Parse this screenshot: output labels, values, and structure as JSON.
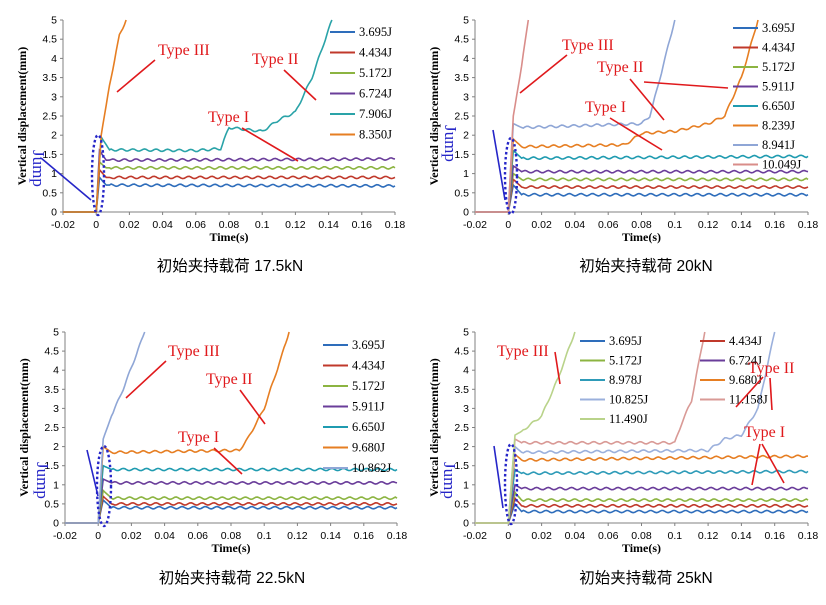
{
  "colors": {
    "annotation": "#e0191c",
    "jump": "#2626c8",
    "axis": "#808080",
    "s3695": "#2e6dbb",
    "s4434": "#c0392b",
    "s5172": "#8cb441",
    "s5911": "#6a3d9a",
    "s6724": "#6a3d9a",
    "s6650": "#1f9bb0",
    "s7906": "#2aa3a8",
    "s8350": "#e67e22",
    "s8239": "#e67e22",
    "s8941": "#8fa6d6",
    "s8978": "#2e9bb8",
    "s9680": "#e67e22",
    "s10049": "#d98d8a",
    "s10862": "#8fa6d6",
    "s10825": "#9bb0dc",
    "s11158": "#d99a96",
    "s11490": "#b9d38a",
    "baseline": "#e67e22"
  },
  "chart_data": [
    {
      "type": "line",
      "caption": "初始夹持载荷 17.5kN",
      "xlabel": "Time(s)",
      "ylabel": "Vertical displacement(mm)",
      "xlim": [
        -0.02,
        0.18
      ],
      "ylim": [
        0,
        5
      ],
      "xticks": [
        "-0.02",
        "0",
        "0.02",
        "0.04",
        "0.06",
        "0.08",
        "0.1",
        "0.12",
        "0.14",
        "0.16",
        "0.18"
      ],
      "yticks": [
        "0",
        "0.5",
        "1",
        "1.5",
        "2",
        "2.5",
        "3",
        "3.5",
        "4",
        "4.5",
        "5"
      ],
      "series": [
        {
          "name": "3.695J",
          "color": "#2e6dbb",
          "points": [
            [
              -0.02,
              0
            ],
            [
              0,
              0
            ],
            [
              0.002,
              0.9
            ],
            [
              0.006,
              0.7
            ],
            [
              0.18,
              0.68
            ]
          ]
        },
        {
          "name": "4.434J",
          "color": "#c0392b",
          "points": [
            [
              -0.02,
              0
            ],
            [
              0,
              0
            ],
            [
              0.002,
              1.1
            ],
            [
              0.006,
              0.9
            ],
            [
              0.18,
              0.9
            ]
          ]
        },
        {
          "name": "5.172J",
          "color": "#8cb441",
          "points": [
            [
              -0.02,
              0
            ],
            [
              0,
              0
            ],
            [
              0.002,
              1.3
            ],
            [
              0.006,
              1.15
            ],
            [
              0.18,
              1.15
            ]
          ]
        },
        {
          "name": "6.724J",
          "color": "#6a3d9a",
          "points": [
            [
              -0.02,
              0
            ],
            [
              0,
              0
            ],
            [
              0.002,
              1.6
            ],
            [
              0.006,
              1.35
            ],
            [
              0.18,
              1.38
            ]
          ]
        },
        {
          "name": "7.906J",
          "color": "#2aa3a8",
          "points": [
            [
              -0.02,
              0
            ],
            [
              0,
              0
            ],
            [
              0.003,
              1.95
            ],
            [
              0.008,
              1.62
            ],
            [
              0.06,
              1.6
            ],
            [
              0.075,
              1.65
            ],
            [
              0.08,
              2.2
            ],
            [
              0.09,
              2.15
            ],
            [
              0.1,
              2.1
            ],
            [
              0.11,
              2.4
            ],
            [
              0.12,
              2.6
            ],
            [
              0.13,
              3.5
            ],
            [
              0.142,
              5
            ]
          ]
        },
        {
          "name": "8.350J",
          "color": "#e67e22",
          "points": [
            [
              -0.02,
              0
            ],
            [
              0,
              0
            ],
            [
              0.003,
              2.0
            ],
            [
              0.008,
              3.3
            ],
            [
              0.014,
              4.6
            ],
            [
              0.018,
              5
            ]
          ]
        }
      ],
      "annotations": [
        "Type III",
        "Type II",
        "Type I"
      ],
      "jump_label": "Jump"
    },
    {
      "type": "line",
      "caption": "初始夹持载荷  20kN",
      "xlabel": "Time(s)",
      "ylabel": "Vertical displacement(mm)",
      "xlim": [
        -0.02,
        0.18
      ],
      "ylim": [
        0,
        5
      ],
      "xticks": [
        "-0.02",
        "0",
        "0.02",
        "0.04",
        "0.06",
        "0.08",
        "0.1",
        "0.12",
        "0.14",
        "0.16",
        "0.18"
      ],
      "yticks": [
        "0",
        "0.5",
        "1",
        "1.5",
        "2",
        "2.5",
        "3",
        "3.5",
        "4",
        "4.5",
        "5"
      ],
      "series": [
        {
          "name": "3.695J",
          "color": "#2e6dbb",
          "points": [
            [
              -0.02,
              0
            ],
            [
              0,
              0
            ],
            [
              0.003,
              0.7
            ],
            [
              0.008,
              0.45
            ],
            [
              0.18,
              0.45
            ]
          ]
        },
        {
          "name": "4.434J",
          "color": "#c0392b",
          "points": [
            [
              -0.02,
              0
            ],
            [
              0,
              0
            ],
            [
              0.003,
              0.85
            ],
            [
              0.008,
              0.65
            ],
            [
              0.18,
              0.65
            ]
          ]
        },
        {
          "name": "5.172J",
          "color": "#8cb441",
          "points": [
            [
              -0.02,
              0
            ],
            [
              0,
              0
            ],
            [
              0.003,
              1.0
            ],
            [
              0.008,
              0.85
            ],
            [
              0.18,
              0.85
            ]
          ]
        },
        {
          "name": "5.911J",
          "color": "#6a3d9a",
          "points": [
            [
              -0.02,
              0
            ],
            [
              0,
              0
            ],
            [
              0.003,
              1.2
            ],
            [
              0.008,
              1.05
            ],
            [
              0.18,
              1.05
            ]
          ]
        },
        {
          "name": "6.650J",
          "color": "#1f9bb0",
          "points": [
            [
              -0.02,
              0
            ],
            [
              0,
              0
            ],
            [
              0.003,
              1.6
            ],
            [
              0.008,
              1.4
            ],
            [
              0.18,
              1.45
            ]
          ]
        },
        {
          "name": "8.239J",
          "color": "#e67e22",
          "points": [
            [
              -0.02,
              0
            ],
            [
              0,
              0
            ],
            [
              0.003,
              1.9
            ],
            [
              0.008,
              1.7
            ],
            [
              0.07,
              1.75
            ],
            [
              0.08,
              2.05
            ],
            [
              0.1,
              2.1
            ],
            [
              0.12,
              2.3
            ],
            [
              0.13,
              2.5
            ],
            [
              0.14,
              3.5
            ],
            [
              0.15,
              5
            ]
          ]
        },
        {
          "name": "8.941J",
          "color": "#8fa6d6",
          "points": [
            [
              -0.02,
              0
            ],
            [
              0,
              0
            ],
            [
              0.003,
              2.3
            ],
            [
              0.008,
              2.2
            ],
            [
              0.08,
              2.3
            ],
            [
              0.085,
              2.5
            ],
            [
              0.09,
              3.3
            ],
            [
              0.1,
              5
            ]
          ]
        },
        {
          "name": "10.049J",
          "color": "#d98d8a",
          "points": [
            [
              -0.02,
              0
            ],
            [
              0,
              0
            ],
            [
              0.003,
              2.5
            ],
            [
              0.008,
              3.8
            ],
            [
              0.012,
              5
            ]
          ]
        }
      ],
      "annotations": [
        "Type III",
        "Type II",
        "Type I"
      ],
      "jump_label": "Jump"
    },
    {
      "type": "line",
      "caption": "初始夹持载荷  22.5kN",
      "xlabel": "Time(s)",
      "ylabel": "Vertical displacement(mm)",
      "xlim": [
        -0.02,
        0.18
      ],
      "ylim": [
        0,
        5
      ],
      "xticks": [
        "-0.02",
        "0",
        "0.02",
        "0.04",
        "0.06",
        "0.08",
        "0.1",
        "0.12",
        "0.14",
        "0.16",
        "0.18"
      ],
      "yticks": [
        "0",
        "0.5",
        "1",
        "1.5",
        "2",
        "2.5",
        "3",
        "3.5",
        "4",
        "4.5",
        "5"
      ],
      "series": [
        {
          "name": "3.695J",
          "color": "#2e6dbb",
          "points": [
            [
              -0.02,
              0
            ],
            [
              0,
              0
            ],
            [
              0.003,
              0.6
            ],
            [
              0.008,
              0.4
            ],
            [
              0.18,
              0.4
            ]
          ]
        },
        {
          "name": "4.434J",
          "color": "#c0392b",
          "points": [
            [
              -0.02,
              0
            ],
            [
              0,
              0
            ],
            [
              0.003,
              0.7
            ],
            [
              0.008,
              0.5
            ],
            [
              0.18,
              0.5
            ]
          ]
        },
        {
          "name": "5.172J",
          "color": "#8cb441",
          "points": [
            [
              -0.02,
              0
            ],
            [
              0,
              0
            ],
            [
              0.003,
              0.85
            ],
            [
              0.008,
              0.65
            ],
            [
              0.18,
              0.65
            ]
          ]
        },
        {
          "name": "5.911J",
          "color": "#6a3d9a",
          "points": [
            [
              -0.02,
              0
            ],
            [
              0,
              0
            ],
            [
              0.003,
              1.15
            ],
            [
              0.008,
              1.05
            ],
            [
              0.18,
              1.05
            ]
          ]
        },
        {
          "name": "6.650J",
          "color": "#1f9bb0",
          "points": [
            [
              -0.02,
              0
            ],
            [
              0,
              0
            ],
            [
              0.003,
              1.5
            ],
            [
              0.008,
              1.4
            ],
            [
              0.18,
              1.4
            ]
          ]
        },
        {
          "name": "9.680J",
          "color": "#e67e22",
          "points": [
            [
              -0.02,
              0
            ],
            [
              0,
              0
            ],
            [
              0.003,
              2.0
            ],
            [
              0.008,
              1.85
            ],
            [
              0.085,
              1.9
            ],
            [
              0.09,
              2.2
            ],
            [
              0.1,
              3.0
            ],
            [
              0.11,
              4.3
            ],
            [
              0.115,
              5
            ]
          ]
        },
        {
          "name": "10.862J",
          "color": "#8fa6d6",
          "points": [
            [
              -0.02,
              0
            ],
            [
              0,
              0
            ],
            [
              0.003,
              2.2
            ],
            [
              0.008,
              2.8
            ],
            [
              0.015,
              3.5
            ],
            [
              0.022,
              4.3
            ],
            [
              0.028,
              5
            ]
          ]
        }
      ],
      "annotations": [
        "Type III",
        "Type II",
        "Type I"
      ],
      "jump_label": "Jump"
    },
    {
      "type": "line",
      "caption": "初始夹持载荷  25kN",
      "xlabel": "Time(s)",
      "ylabel": "Vertical displacement(mm)",
      "xlim": [
        -0.02,
        0.18
      ],
      "ylim": [
        0,
        5
      ],
      "xticks": [
        "-0.02",
        "0",
        "0.02",
        "0.04",
        "0.06",
        "0.08",
        "0.1",
        "0.12",
        "0.14",
        "0.16",
        "0.18"
      ],
      "yticks": [
        "0",
        "0.5",
        "1",
        "1.5",
        "2",
        "2.5",
        "3",
        "3.5",
        "4",
        "4.5",
        "5"
      ],
      "series": [
        {
          "name": "3.695J",
          "color": "#2e6dbb",
          "points": [
            [
              -0.02,
              0
            ],
            [
              0,
              0
            ],
            [
              0.004,
              0.5
            ],
            [
              0.008,
              0.3
            ],
            [
              0.18,
              0.3
            ]
          ]
        },
        {
          "name": "4.434J",
          "color": "#c0392b",
          "points": [
            [
              -0.02,
              0
            ],
            [
              0,
              0
            ],
            [
              0.004,
              0.65
            ],
            [
              0.008,
              0.45
            ],
            [
              0.18,
              0.45
            ]
          ]
        },
        {
          "name": "5.172J",
          "color": "#8cb441",
          "points": [
            [
              -0.02,
              0
            ],
            [
              0,
              0
            ],
            [
              0.004,
              0.8
            ],
            [
              0.008,
              0.6
            ],
            [
              0.18,
              0.6
            ]
          ]
        },
        {
          "name": "6.724J",
          "color": "#6a3d9a",
          "points": [
            [
              -0.02,
              0
            ],
            [
              0,
              0
            ],
            [
              0.004,
              1.0
            ],
            [
              0.008,
              0.9
            ],
            [
              0.18,
              0.9
            ]
          ]
        },
        {
          "name": "8.978J",
          "color": "#2e9bb8",
          "points": [
            [
              -0.02,
              0
            ],
            [
              0,
              0
            ],
            [
              0.004,
              1.4
            ],
            [
              0.008,
              1.3
            ],
            [
              0.18,
              1.35
            ]
          ]
        },
        {
          "name": "9.680J",
          "color": "#e67e22",
          "points": [
            [
              -0.02,
              0
            ],
            [
              0,
              0
            ],
            [
              0.004,
              1.8
            ],
            [
              0.008,
              1.65
            ],
            [
              0.18,
              1.75
            ]
          ]
        },
        {
          "name": "10.825J",
          "color": "#9bb0dc",
          "points": [
            [
              -0.02,
              0
            ],
            [
              0,
              0
            ],
            [
              0.004,
              2.0
            ],
            [
              0.008,
              1.85
            ],
            [
              0.12,
              1.9
            ],
            [
              0.13,
              2.2
            ],
            [
              0.14,
              2.3
            ],
            [
              0.15,
              3.0
            ],
            [
              0.16,
              5
            ]
          ]
        },
        {
          "name": "11.158J",
          "color": "#d99a96",
          "points": [
            [
              -0.02,
              0
            ],
            [
              0,
              0
            ],
            [
              0.004,
              2.2
            ],
            [
              0.008,
              2.1
            ],
            [
              0.1,
              2.1
            ],
            [
              0.104,
              2.6
            ],
            [
              0.11,
              3.2
            ],
            [
              0.118,
              5
            ]
          ]
        },
        {
          "name": "11.490J",
          "color": "#b9d38a",
          "points": [
            [
              -0.02,
              0
            ],
            [
              0,
              0
            ],
            [
              0.004,
              2.3
            ],
            [
              0.008,
              2.4
            ],
            [
              0.02,
              2.8
            ],
            [
              0.03,
              3.8
            ],
            [
              0.04,
              5
            ]
          ]
        }
      ],
      "annotations": [
        "Type III",
        "Type II",
        "Type I"
      ],
      "jump_label": "Jump"
    }
  ]
}
